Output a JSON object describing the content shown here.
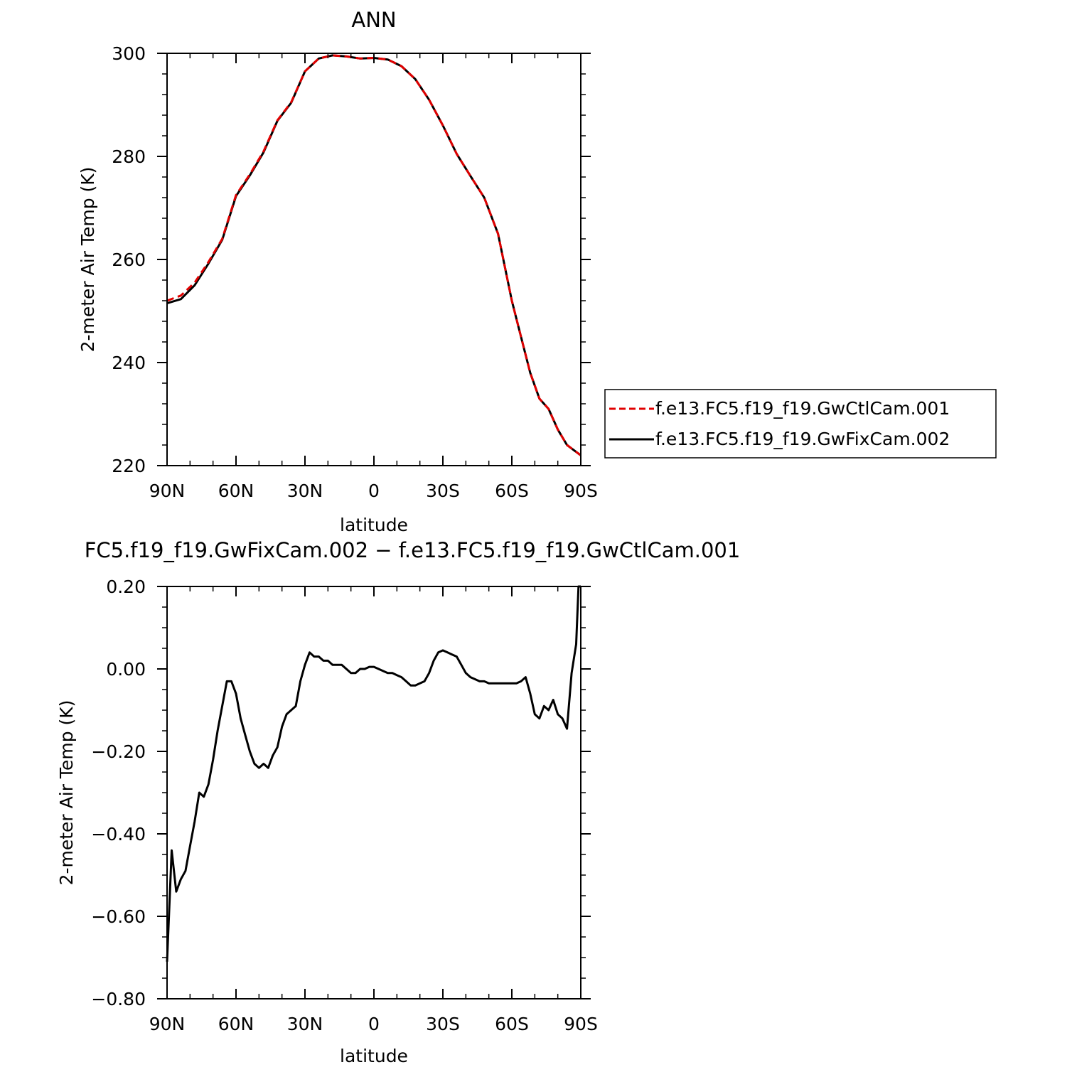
{
  "chart_data": [
    {
      "type": "line",
      "title": "ANN",
      "xlabel": "latitude",
      "ylabel": "2-meter Air Temp (K)",
      "xlim": [
        90,
        -90
      ],
      "ylim": [
        220,
        300
      ],
      "x_ticks": [
        90,
        60,
        30,
        0,
        -30,
        -60,
        -90
      ],
      "x_tick_labels": [
        "90N",
        "60N",
        "30N",
        "0",
        "30S",
        "60S",
        "90S"
      ],
      "y_ticks": [
        220,
        240,
        260,
        280,
        300
      ],
      "y_tick_labels": [
        "220",
        "240",
        "260",
        "280",
        "300"
      ],
      "legend": "right",
      "series": [
        {
          "name": "f.e13.FC5.f19_f19.GwCtlCam.001",
          "color": "#e00000",
          "dash": "dashed",
          "x": [
            90,
            84,
            78,
            72,
            66,
            60,
            54,
            48,
            42,
            36,
            30,
            24,
            18,
            12,
            6,
            0,
            -6,
            -12,
            -18,
            -24,
            -30,
            -36,
            -42,
            -48,
            -54,
            -60,
            -64,
            -68,
            -72,
            -76,
            -80,
            -84,
            -87,
            -90
          ],
          "values": [
            252,
            253,
            255.5,
            259.5,
            264,
            272.5,
            276.5,
            281,
            287,
            290.5,
            296.5,
            299,
            299.6,
            299.4,
            299,
            299.1,
            298.8,
            297.5,
            295,
            291,
            286,
            280.5,
            276.2,
            272,
            265,
            252,
            245,
            238,
            233,
            231,
            227,
            224,
            223,
            222
          ]
        },
        {
          "name": "f.e13.FC5.f19_f19.GwFixCam.002",
          "color": "#000000",
          "dash": "solid",
          "x": [
            90,
            84,
            78,
            72,
            66,
            60,
            54,
            48,
            42,
            36,
            30,
            24,
            18,
            12,
            6,
            0,
            -6,
            -12,
            -18,
            -24,
            -30,
            -36,
            -42,
            -48,
            -54,
            -60,
            -64,
            -68,
            -72,
            -76,
            -80,
            -84,
            -87,
            -90
          ],
          "values": [
            251.5,
            252.3,
            255,
            259.2,
            263.8,
            272.3,
            276.3,
            280.8,
            286.9,
            290.4,
            296.5,
            299,
            299.6,
            299.4,
            299,
            299.1,
            298.8,
            297.5,
            295,
            291,
            286,
            280.5,
            276.2,
            272,
            265,
            252,
            245,
            238,
            233,
            231,
            227,
            224,
            223,
            222
          ]
        }
      ]
    },
    {
      "type": "line",
      "title": "FC5.f19_f19.GwFixCam.002 − f.e13.FC5.f19_f19.GwCtlCam.001",
      "xlabel": "latitude",
      "ylabel": "2-meter Air Temp (K)",
      "xlim": [
        90,
        -90
      ],
      "ylim": [
        -0.8,
        0.2
      ],
      "x_ticks": [
        90,
        60,
        30,
        0,
        -30,
        -60,
        -90
      ],
      "x_tick_labels": [
        "90N",
        "60N",
        "30N",
        "0",
        "30S",
        "60S",
        "90S"
      ],
      "y_ticks": [
        -0.8,
        -0.6,
        -0.4,
        -0.2,
        0,
        0.2
      ],
      "y_tick_labels": [
        "−0.80",
        "−0.60",
        "−0.40",
        "−0.20",
        "0.00",
        "0.20"
      ],
      "series": [
        {
          "name": "",
          "color": "#000000",
          "x": [
            90,
            88,
            86,
            84,
            82,
            80,
            78,
            76,
            74,
            72,
            70,
            68,
            66,
            64,
            62,
            60,
            58,
            56,
            54,
            52,
            50,
            48,
            46,
            44,
            42,
            40,
            38,
            36,
            34,
            32,
            30,
            28,
            26,
            24,
            22,
            20,
            18,
            16,
            14,
            12,
            10,
            8,
            6,
            4,
            2,
            0,
            -2,
            -4,
            -6,
            -8,
            -10,
            -12,
            -14,
            -16,
            -18,
            -20,
            -22,
            -24,
            -26,
            -28,
            -30,
            -32,
            -34,
            -36,
            -38,
            -40,
            -42,
            -44,
            -46,
            -48,
            -50,
            -52,
            -54,
            -56,
            -58,
            -60,
            -62,
            -64,
            -66,
            -68,
            -70,
            -72,
            -74,
            -76,
            -78,
            -80,
            -82,
            -84,
            -86,
            -88,
            -89,
            -90
          ],
          "values": [
            -0.71,
            -0.44,
            -0.54,
            -0.51,
            -0.49,
            -0.43,
            -0.37,
            -0.3,
            -0.31,
            -0.28,
            -0.22,
            -0.15,
            -0.09,
            -0.03,
            -0.03,
            -0.06,
            -0.12,
            -0.16,
            -0.2,
            -0.23,
            -0.24,
            -0.23,
            -0.24,
            -0.21,
            -0.19,
            -0.14,
            -0.11,
            -0.1,
            -0.09,
            -0.03,
            0.01,
            0.04,
            0.03,
            0.03,
            0.02,
            0.02,
            0.01,
            0.01,
            0.01,
            0,
            -0.01,
            -0.01,
            0,
            0,
            0.005,
            0.005,
            0,
            -0.005,
            -0.01,
            -0.01,
            -0.015,
            -0.02,
            -0.03,
            -0.04,
            -0.04,
            -0.035,
            -0.03,
            -0.01,
            0.02,
            0.04,
            0.045,
            0.04,
            0.035,
            0.03,
            0.01,
            -0.01,
            -0.02,
            -0.025,
            -0.03,
            -0.03,
            -0.035,
            -0.035,
            -0.035,
            -0.035,
            -0.035,
            -0.035,
            -0.035,
            -0.03,
            -0.02,
            -0.06,
            -0.11,
            -0.12,
            -0.09,
            -0.1,
            -0.075,
            -0.11,
            -0.12,
            -0.145,
            -0.01,
            0.06,
            0.2,
            0.2
          ]
        }
      ]
    }
  ]
}
